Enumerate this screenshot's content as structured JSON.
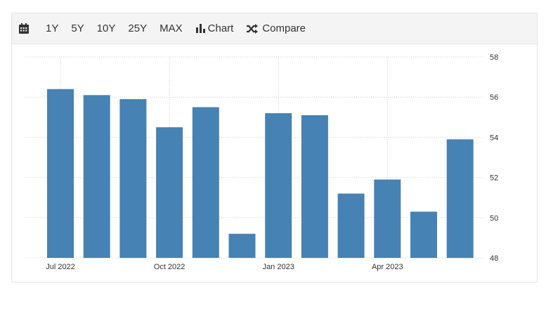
{
  "toolbar": {
    "calendar_icon": "calendar-icon",
    "ranges": [
      "1Y",
      "5Y",
      "10Y",
      "25Y",
      "MAX"
    ],
    "chart_label": "Chart",
    "chart_icon": "bar-chart-icon",
    "compare_label": "Compare",
    "compare_icon": "shuffle-icon"
  },
  "colors": {
    "bar": "#4682b4",
    "grid": "#cccccc",
    "text": "#333333"
  },
  "chart_data": {
    "type": "bar",
    "categories": [
      "Jul 2022",
      "Aug 2022",
      "Sep 2022",
      "Oct 2022",
      "Nov 2022",
      "Dec 2022",
      "Jan 2023",
      "Feb 2023",
      "Mar 2023",
      "Apr 2023",
      "May 2023",
      "Jun 2023"
    ],
    "values": [
      56.4,
      56.1,
      55.9,
      54.5,
      55.5,
      49.2,
      55.2,
      55.1,
      51.2,
      51.9,
      50.3,
      53.9
    ],
    "x_tick_labels": [
      "Jul 2022",
      "Oct 2022",
      "Jan 2023",
      "Apr 2023"
    ],
    "ylim": [
      48,
      58
    ],
    "yticks": [
      48,
      50,
      52,
      54,
      56,
      58
    ],
    "y_axis_side": "right",
    "grid": true,
    "title": "",
    "xlabel": "",
    "ylabel": ""
  }
}
